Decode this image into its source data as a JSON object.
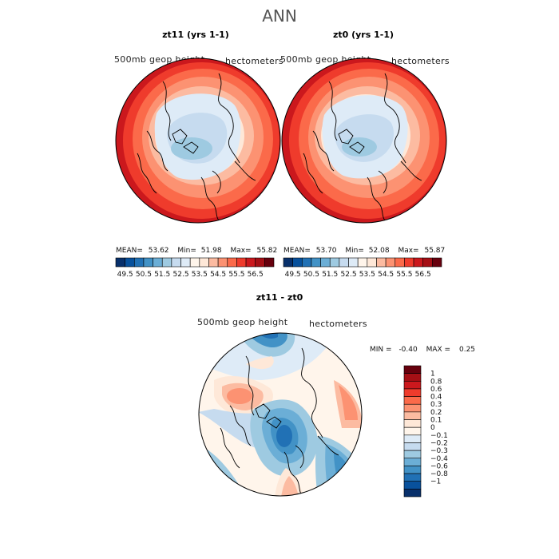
{
  "title": "ANN",
  "colors": {
    "warm": [
      "#fee8d8",
      "#fcbba1",
      "#fc9272",
      "#fb6a4a",
      "#ef3b2c",
      "#cb181d",
      "#a50f15",
      "#67000d"
    ],
    "cool": [
      "#deebf7",
      "#c6dbef",
      "#9ecae1",
      "#6baed6",
      "#4292c6",
      "#2171b5",
      "#08519c",
      "#08306b"
    ],
    "main_bar": [
      "#08306b",
      "#08519c",
      "#2171b5",
      "#4292c6",
      "#6baed6",
      "#9ecae1",
      "#c6dbef",
      "#deebf7",
      "#fff5eb",
      "#fee8d8",
      "#fcbba1",
      "#fc9272",
      "#fb6a4a",
      "#ef3b2c",
      "#cb181d",
      "#a50f15",
      "#67000d"
    ],
    "diff_bar": [
      "#67000d",
      "#a50f15",
      "#cb181d",
      "#ef3b2c",
      "#fb6a4a",
      "#fc9272",
      "#fcbba1",
      "#fee8d8",
      "#fff5eb",
      "#deebf7",
      "#c6dbef",
      "#9ecae1",
      "#6baed6",
      "#4292c6",
      "#2171b5",
      "#08519c",
      "#08306b"
    ]
  },
  "panels": [
    {
      "title": "zt11 (yrs 1-1)",
      "variable": "500mb  geop  height",
      "units": "hectometers",
      "stats": {
        "mean_label": "MEAN=",
        "mean": "53.62",
        "min_label": "Min=",
        "min": "51.98",
        "max_label": "Max=",
        "max": "55.82"
      },
      "colorbar_ticks": [
        "49.5",
        "50.5",
        "51.5",
        "52.5",
        "53.5",
        "54.5",
        "55.5",
        "56.5"
      ]
    },
    {
      "title": "zt0 (yrs 1-1)",
      "variable": "500mb  geop  height",
      "units": "hectometers",
      "stats": {
        "mean_label": "MEAN=",
        "mean": "53.70",
        "min_label": "Min=",
        "min": "52.08",
        "max_label": "Max=",
        "max": "55.87"
      },
      "colorbar_ticks": [
        "49.5",
        "50.5",
        "51.5",
        "52.5",
        "53.5",
        "54.5",
        "55.5",
        "56.5"
      ]
    }
  ],
  "diff": {
    "title": "zt11 - zt0",
    "variable": "500mb  geop  height",
    "units": "hectometers",
    "stats": {
      "min_label": "MIN =",
      "min": "-0.40",
      "max_label": "MAX =",
      "max": "0.25"
    },
    "colorbar_ticks": [
      "1",
      "0.8",
      "0.6",
      "0.4",
      "0.3",
      "0.2",
      "0.1",
      "0",
      "−0.1",
      "−0.2",
      "−0.3",
      "−0.4",
      "−0.6",
      "−0.8",
      "−1"
    ]
  }
}
